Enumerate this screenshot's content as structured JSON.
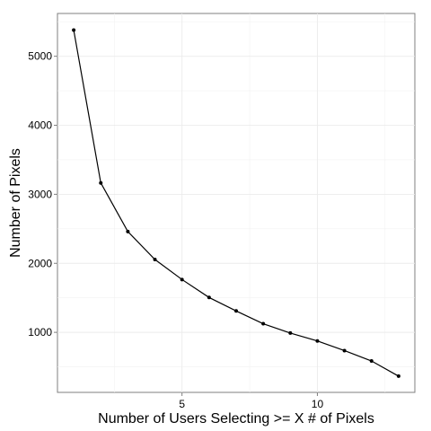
{
  "chart_data": {
    "type": "line",
    "title": "",
    "xlabel": "Number of Users Selecting >= X # of Pixels",
    "ylabel": "Number of Pixels",
    "xlim": [
      0.4,
      13.6
    ],
    "ylim": [
      130,
      5620
    ],
    "xticks": [
      5,
      10
    ],
    "yticks": [
      1000,
      2000,
      3000,
      4000,
      5000
    ],
    "grid": true,
    "series": [
      {
        "x": [
          1,
          2,
          3,
          4,
          5,
          6,
          7,
          8,
          9,
          10,
          11,
          12,
          13
        ],
        "values": [
          5380,
          3165,
          2460,
          2055,
          1765,
          1505,
          1310,
          1125,
          990,
          875,
          735,
          585,
          365
        ]
      }
    ]
  }
}
